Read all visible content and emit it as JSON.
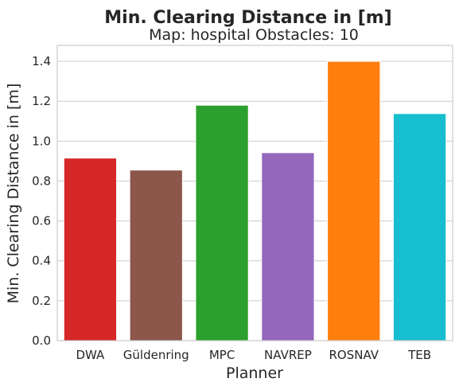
{
  "chart_data": {
    "type": "bar",
    "title": "Min. Clearing Distance in [m]",
    "subtitle": "Map: hospital Obstacles: 10",
    "xlabel": "Planner",
    "ylabel": "Min. Clearing Distance in [m]",
    "categories": [
      "DWA",
      "Güldenring",
      "MPC",
      "NAVREP",
      "ROSNAV",
      "TEB"
    ],
    "values": [
      0.915,
      0.855,
      1.18,
      0.942,
      1.4,
      1.138
    ],
    "colors": [
      "#d62728",
      "#8c564b",
      "#2ca02c",
      "#9467bd",
      "#ff7f0e",
      "#17becf"
    ],
    "ylim": [
      0,
      1.48
    ],
    "yticks": [
      0.0,
      0.2,
      0.4,
      0.6,
      0.8,
      1.0,
      1.2,
      1.4
    ],
    "ytick_labels": [
      "0.0",
      "0.2",
      "0.4",
      "0.6",
      "0.8",
      "1.0",
      "1.2",
      "1.4"
    ],
    "grid": true,
    "legend": "none"
  }
}
